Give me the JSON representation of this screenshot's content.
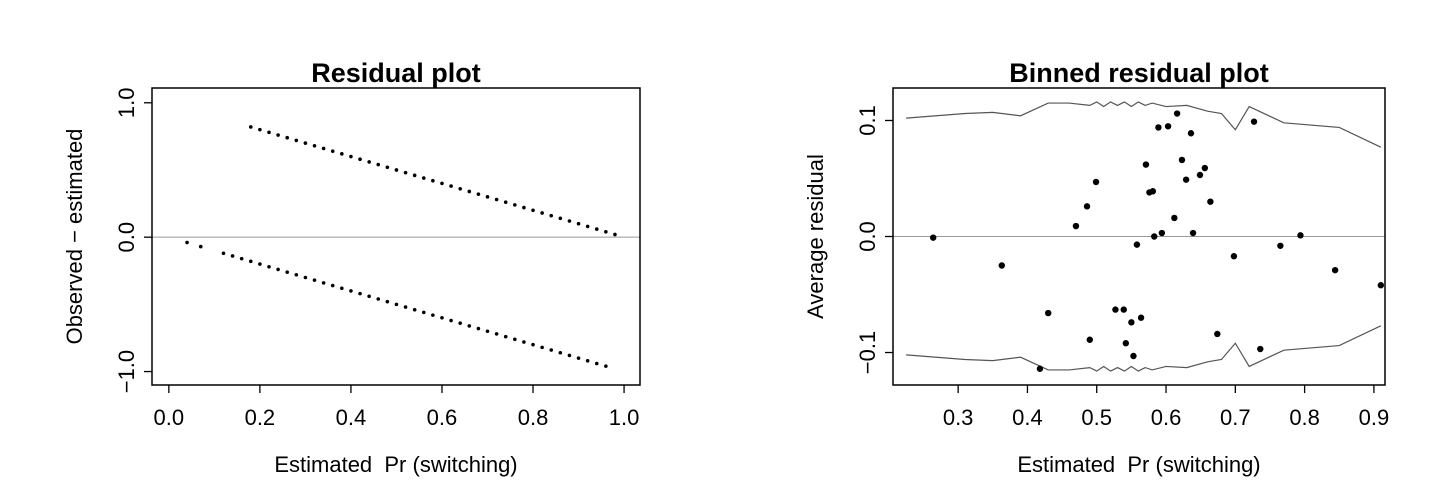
{
  "chart_data": [
    {
      "type": "scatter",
      "title": "Residual plot",
      "xlabel": "Estimated  Pr (switching)",
      "ylabel": "Observed − estimated",
      "xlim": [
        -0.037,
        1.035
      ],
      "ylim": [
        -1.1,
        1.11
      ],
      "xticks": [
        {
          "value": 0,
          "label": "0.0"
        },
        0.2,
        0.4,
        0.6,
        0.8,
        {
          "value": 1,
          "label": "1.0"
        }
      ],
      "yticks": [
        {
          "value": -1,
          "label": "−1.0"
        },
        {
          "value": 0,
          "label": "0.0"
        },
        {
          "value": 1,
          "label": "1.0"
        }
      ],
      "reference_line": 0,
      "series": [
        {
          "mode": "points",
          "color": "#000000",
          "x": [
            0.18,
            0.2,
            0.22,
            0.24,
            0.26,
            0.28,
            0.3,
            0.32,
            0.34,
            0.36,
            0.38,
            0.4,
            0.42,
            0.44,
            0.46,
            0.48,
            0.5,
            0.52,
            0.54,
            0.56,
            0.58,
            0.6,
            0.62,
            0.64,
            0.66,
            0.68,
            0.7,
            0.72,
            0.74,
            0.76,
            0.78,
            0.8,
            0.82,
            0.84,
            0.86,
            0.88,
            0.9,
            0.92,
            0.94,
            0.96,
            0.98
          ],
          "values": [
            0.82,
            0.8,
            0.78,
            0.76,
            0.74,
            0.72,
            0.7,
            0.68,
            0.66,
            0.64,
            0.62,
            0.6,
            0.58,
            0.56,
            0.54,
            0.52,
            0.5,
            0.48,
            0.46,
            0.44,
            0.42,
            0.4,
            0.38,
            0.36,
            0.34,
            0.32,
            0.3,
            0.28,
            0.26,
            0.24,
            0.22,
            0.2,
            0.18,
            0.16,
            0.14,
            0.12,
            0.1,
            0.08,
            0.06,
            0.04,
            0.02
          ]
        },
        {
          "mode": "points",
          "color": "#000000",
          "x": [
            0.04,
            0.07,
            0.12,
            0.14,
            0.16,
            0.18,
            0.2,
            0.22,
            0.24,
            0.26,
            0.28,
            0.3,
            0.32,
            0.34,
            0.36,
            0.38,
            0.4,
            0.42,
            0.44,
            0.46,
            0.48,
            0.5,
            0.52,
            0.54,
            0.56,
            0.58,
            0.6,
            0.62,
            0.64,
            0.66,
            0.68,
            0.7,
            0.72,
            0.74,
            0.76,
            0.78,
            0.8,
            0.82,
            0.84,
            0.86,
            0.88,
            0.9,
            0.92,
            0.94,
            0.96
          ],
          "values": [
            -0.04,
            -0.07,
            -0.12,
            -0.14,
            -0.16,
            -0.18,
            -0.2,
            -0.22,
            -0.24,
            -0.26,
            -0.28,
            -0.3,
            -0.32,
            -0.34,
            -0.36,
            -0.38,
            -0.4,
            -0.42,
            -0.44,
            -0.46,
            -0.48,
            -0.5,
            -0.52,
            -0.54,
            -0.56,
            -0.58,
            -0.6,
            -0.62,
            -0.64,
            -0.66,
            -0.68,
            -0.7,
            -0.72,
            -0.74,
            -0.76,
            -0.78,
            -0.8,
            -0.82,
            -0.84,
            -0.86,
            -0.88,
            -0.9,
            -0.92,
            -0.94,
            -0.96
          ]
        }
      ]
    },
    {
      "type": "scatter",
      "title": "Binned residual plot",
      "xlabel": "Estimated  Pr (switching)",
      "ylabel": "Average residual",
      "xlim": [
        0.206,
        0.916
      ],
      "ylim": [
        -0.128,
        0.128
      ],
      "xticks": [
        0.3,
        0.4,
        0.5,
        0.6,
        0.7,
        0.8,
        0.9
      ],
      "yticks": [
        {
          "value": -0.1,
          "label": "−0.1"
        },
        {
          "value": 0,
          "label": "0.0"
        },
        0.1
      ],
      "reference_line": 0,
      "series": [
        {
          "mode": "line",
          "color": "#555555",
          "x": [
            0.225,
            0.31,
            0.35,
            0.39,
            0.43,
            0.46,
            0.49,
            0.5,
            0.51,
            0.52,
            0.53,
            0.54,
            0.55,
            0.56,
            0.57,
            0.58,
            0.6,
            0.63,
            0.66,
            0.68,
            0.7,
            0.72,
            0.77,
            0.85,
            0.91
          ],
          "values": [
            0.102,
            0.106,
            0.107,
            0.104,
            0.115,
            0.115,
            0.113,
            0.116,
            0.112,
            0.116,
            0.113,
            0.116,
            0.112,
            0.116,
            0.113,
            0.115,
            0.112,
            0.113,
            0.108,
            0.106,
            0.092,
            0.112,
            0.098,
            0.094,
            0.077
          ]
        },
        {
          "mode": "line",
          "color": "#555555",
          "x": [
            0.225,
            0.31,
            0.35,
            0.39,
            0.43,
            0.46,
            0.49,
            0.5,
            0.51,
            0.52,
            0.53,
            0.54,
            0.55,
            0.56,
            0.57,
            0.58,
            0.6,
            0.63,
            0.66,
            0.68,
            0.7,
            0.72,
            0.77,
            0.85,
            0.91
          ],
          "values": [
            -0.102,
            -0.106,
            -0.107,
            -0.104,
            -0.115,
            -0.115,
            -0.113,
            -0.116,
            -0.112,
            -0.116,
            -0.113,
            -0.116,
            -0.112,
            -0.116,
            -0.113,
            -0.115,
            -0.112,
            -0.113,
            -0.108,
            -0.106,
            -0.092,
            -0.112,
            -0.098,
            -0.094,
            -0.077
          ]
        },
        {
          "mode": "points",
          "color": "#000000",
          "x": [
            0.264,
            0.363,
            0.418,
            0.43,
            0.47,
            0.486,
            0.499,
            0.49,
            0.527,
            0.539,
            0.542,
            0.55,
            0.553,
            0.558,
            0.564,
            0.571,
            0.576,
            0.581,
            0.583,
            0.589,
            0.594,
            0.603,
            0.612,
            0.616,
            0.623,
            0.629,
            0.636,
            0.639,
            0.649,
            0.656,
            0.664,
            0.674,
            0.698,
            0.727,
            0.736,
            0.765,
            0.794,
            0.844,
            0.91
          ],
          "values": [
            -0.001,
            -0.025,
            -0.114,
            -0.066,
            0.009,
            0.026,
            0.047,
            -0.089,
            -0.063,
            -0.063,
            -0.092,
            -0.074,
            -0.103,
            -0.007,
            -0.07,
            0.062,
            0.038,
            0.039,
            0.0,
            0.094,
            0.003,
            0.095,
            0.016,
            0.106,
            0.066,
            0.049,
            0.089,
            0.003,
            0.053,
            0.059,
            0.03,
            -0.084,
            -0.017,
            0.099,
            -0.097,
            -0.008,
            0.001,
            -0.029,
            -0.042
          ]
        }
      ]
    }
  ]
}
